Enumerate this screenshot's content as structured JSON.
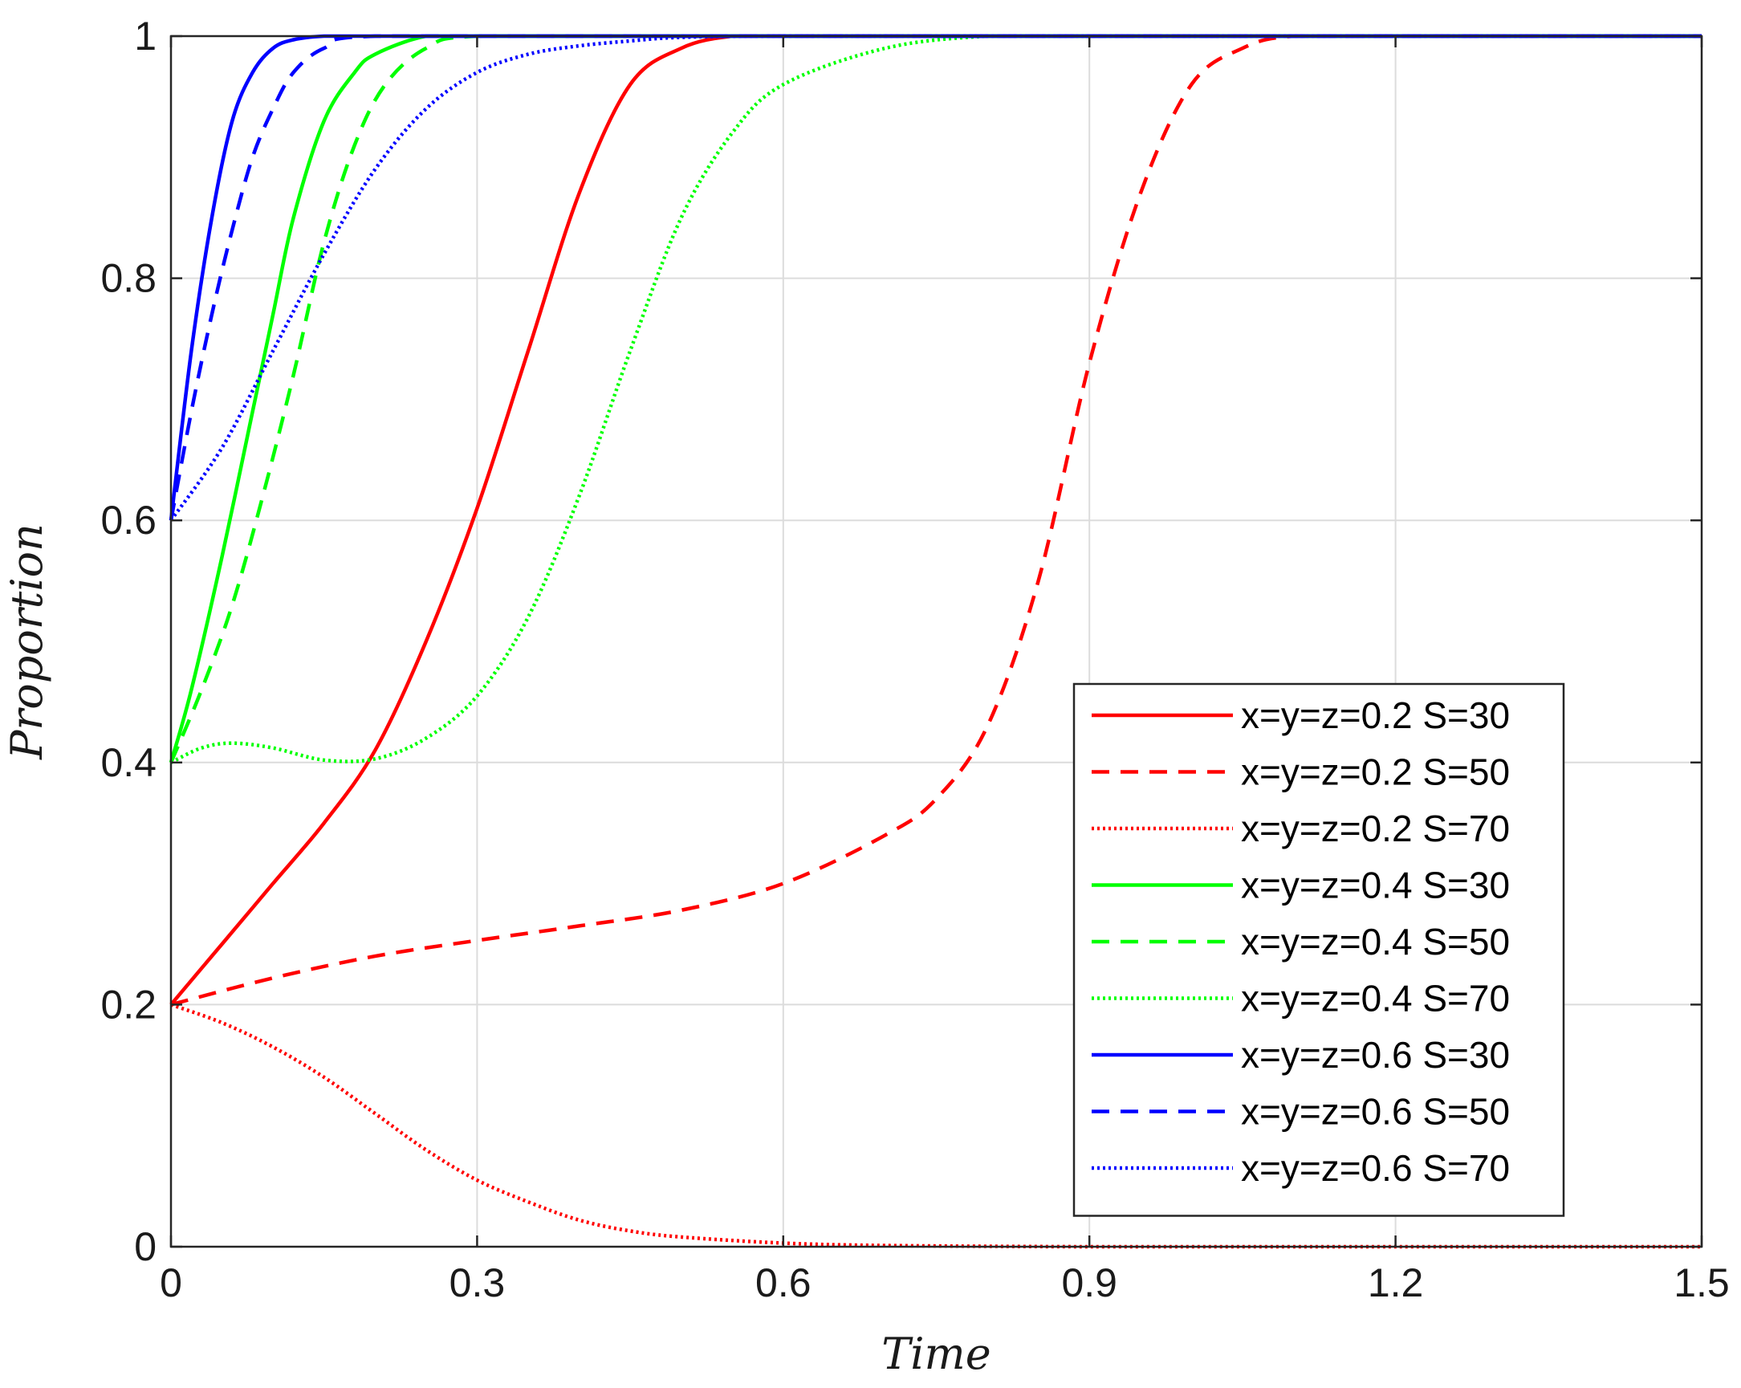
{
  "chart_data": {
    "type": "line",
    "title": "",
    "xlabel": "Time",
    "ylabel": "Proportion",
    "xlim": [
      0,
      1.5
    ],
    "ylim": [
      0,
      1
    ],
    "xticks": [
      0,
      0.3,
      0.6,
      0.9,
      1.2,
      1.5
    ],
    "xtick_labels": [
      "0",
      "0.3",
      "0.6",
      "0.9",
      "1.2",
      "1.5"
    ],
    "yticks": [
      0,
      0.2,
      0.4,
      0.6,
      0.8,
      1
    ],
    "ytick_labels": [
      "0",
      "0.2",
      "0.4",
      "0.6",
      "0.8",
      "1"
    ],
    "grid": true,
    "legend_position": "lower-right",
    "series": [
      {
        "name": "x=y=z=0.2 S=30",
        "color": "#ff0000",
        "style": "solid",
        "x": [
          0,
          0.05,
          0.1,
          0.15,
          0.2,
          0.25,
          0.3,
          0.35,
          0.4,
          0.45,
          0.5,
          0.55,
          0.6,
          0.8,
          1.0,
          1.2,
          1.5
        ],
        "y": [
          0.2,
          0.25,
          0.3,
          0.35,
          0.41,
          0.5,
          0.61,
          0.74,
          0.87,
          0.96,
          0.99,
          1.0,
          1.0,
          1.0,
          1.0,
          1.0,
          1.0
        ]
      },
      {
        "name": "x=y=z=0.2 S=50",
        "color": "#ff0000",
        "style": "dashed",
        "x": [
          0,
          0.1,
          0.2,
          0.3,
          0.4,
          0.5,
          0.6,
          0.7,
          0.75,
          0.8,
          0.85,
          0.9,
          0.95,
          1.0,
          1.05,
          1.1,
          1.2,
          1.5
        ],
        "y": [
          0.2,
          0.222,
          0.24,
          0.253,
          0.265,
          0.278,
          0.3,
          0.34,
          0.37,
          0.43,
          0.55,
          0.73,
          0.87,
          0.96,
          0.99,
          1.0,
          1.0,
          1.0
        ]
      },
      {
        "name": "x=y=z=0.2 S=70",
        "color": "#ff0000",
        "style": "dotted",
        "x": [
          0,
          0.05,
          0.1,
          0.15,
          0.2,
          0.25,
          0.3,
          0.35,
          0.4,
          0.45,
          0.5,
          0.6,
          0.7,
          0.9,
          1.2,
          1.5
        ],
        "y": [
          0.2,
          0.185,
          0.165,
          0.14,
          0.11,
          0.08,
          0.055,
          0.037,
          0.022,
          0.013,
          0.008,
          0.003,
          0.001,
          0.0,
          0.0,
          0.0
        ]
      },
      {
        "name": "x=y=z=0.4 S=30",
        "color": "#00ff00",
        "style": "solid",
        "x": [
          0,
          0.02,
          0.05,
          0.08,
          0.1,
          0.12,
          0.15,
          0.18,
          0.2,
          0.25,
          0.3,
          0.5,
          1.0,
          1.5
        ],
        "y": [
          0.4,
          0.46,
          0.57,
          0.69,
          0.77,
          0.85,
          0.93,
          0.97,
          0.985,
          1.0,
          1.0,
          1.0,
          1.0,
          1.0
        ]
      },
      {
        "name": "x=y=z=0.4 S=50",
        "color": "#00ff00",
        "style": "dashed",
        "x": [
          0,
          0.03,
          0.06,
          0.09,
          0.12,
          0.15,
          0.18,
          0.21,
          0.25,
          0.3,
          0.5,
          1.0,
          1.5
        ],
        "y": [
          0.4,
          0.46,
          0.53,
          0.62,
          0.72,
          0.83,
          0.91,
          0.96,
          0.99,
          1.0,
          1.0,
          1.0,
          1.0
        ]
      },
      {
        "name": "x=y=z=0.4 S=70",
        "color": "#00ff00",
        "style": "dotted",
        "x": [
          0,
          0.03,
          0.06,
          0.1,
          0.15,
          0.2,
          0.25,
          0.3,
          0.35,
          0.4,
          0.45,
          0.5,
          0.55,
          0.6,
          0.7,
          0.8,
          0.9,
          1.2,
          1.5
        ],
        "y": [
          0.4,
          0.412,
          0.416,
          0.412,
          0.402,
          0.403,
          0.42,
          0.455,
          0.52,
          0.62,
          0.74,
          0.85,
          0.92,
          0.96,
          0.99,
          1.0,
          1.0,
          1.0,
          1.0
        ]
      },
      {
        "name": "x=y=z=0.6 S=30",
        "color": "#0000ff",
        "style": "solid",
        "x": [
          0,
          0.02,
          0.04,
          0.06,
          0.08,
          0.1,
          0.12,
          0.15,
          0.2,
          0.5,
          1.0,
          1.5
        ],
        "y": [
          0.6,
          0.74,
          0.85,
          0.93,
          0.97,
          0.99,
          0.997,
          1.0,
          1.0,
          1.0,
          1.0,
          1.0
        ]
      },
      {
        "name": "x=y=z=0.6 S=50",
        "color": "#0000ff",
        "style": "dashed",
        "x": [
          0,
          0.02,
          0.04,
          0.06,
          0.08,
          0.1,
          0.12,
          0.15,
          0.2,
          0.5,
          1.0,
          1.5
        ],
        "y": [
          0.6,
          0.69,
          0.77,
          0.84,
          0.9,
          0.94,
          0.97,
          0.99,
          1.0,
          1.0,
          1.0,
          1.0
        ]
      },
      {
        "name": "x=y=z=0.6 S=70",
        "color": "#0000ff",
        "style": "dotted",
        "x": [
          0,
          0.05,
          0.1,
          0.15,
          0.2,
          0.25,
          0.3,
          0.35,
          0.4,
          0.45,
          0.5,
          0.6,
          1.0,
          1.5
        ],
        "y": [
          0.6,
          0.66,
          0.74,
          0.82,
          0.89,
          0.94,
          0.97,
          0.985,
          0.992,
          0.996,
          0.999,
          1.0,
          1.0,
          1.0
        ]
      }
    ]
  }
}
